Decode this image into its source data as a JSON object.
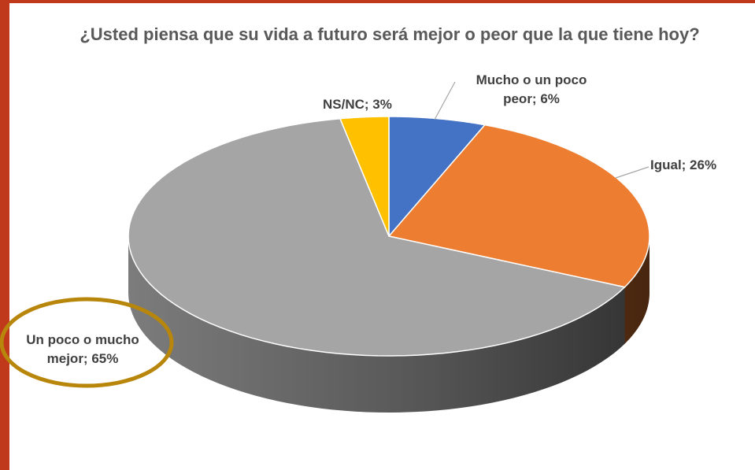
{
  "chart_data": {
    "type": "pie",
    "title": "¿Usted piensa que su vida a futuro será mejor o peor que la que tiene hoy?",
    "values": [
      6,
      26,
      65,
      3
    ],
    "value_labels": [
      "Mucho o un poco peor; 6%",
      "Igual; 26%",
      "Un poco o mucho mejor; 65%",
      "NS/NC; 3%"
    ],
    "colors": [
      "#4472c4",
      "#ed7d31",
      "#a5a5a5",
      "#ffc000"
    ]
  }
}
